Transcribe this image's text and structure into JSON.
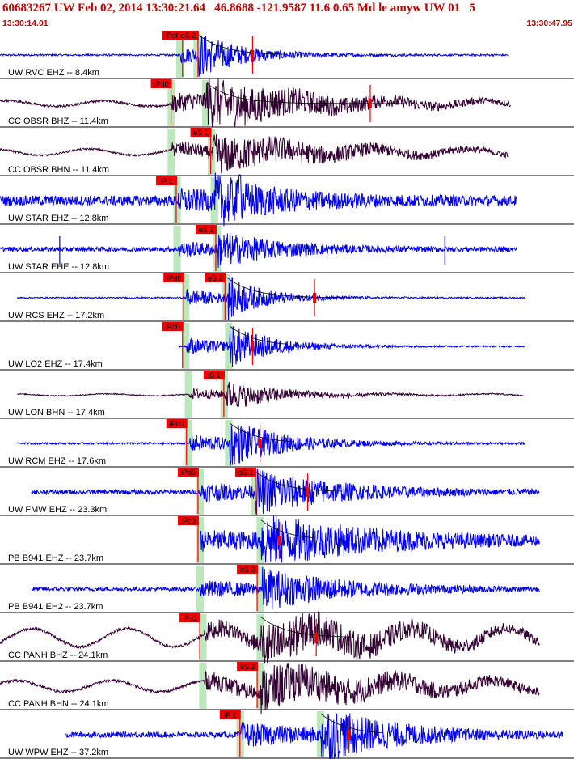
{
  "header": {
    "title": "60683267 UW Feb 02, 2014 13:30:21.64   46.8688 -121.9587 11.6 0.65 Md le amyw UW 01   5",
    "start_time": "13:30:14.01",
    "end_time": "13:30:47.95"
  },
  "colors": {
    "accent": "#c00000",
    "pick_box": "#ee0000",
    "pick_window": "#bde8bd",
    "trace_blue": "#0000ee",
    "trace_purple": "#330033",
    "coda_fit": "#990000"
  },
  "chart_data": {
    "type": "line",
    "title": "60683267 UW Feb 02, 2014 13:30:21.64   46.8688 -121.9587 11.6 0.65 Md le amyw UW 01   5",
    "time_start": "13:30:14.01",
    "time_end": "13:30:47.95",
    "grid": false,
    "traces": [
      {
        "label": "UW RVC EHZ -- 8.4km",
        "color": "blue",
        "picks": [
          {
            "label": "iPd0",
            "t": 0.318
          },
          {
            "label": "eS 2",
            "t": 0.345
          }
        ],
        "amp": 0.38,
        "noise": 0.02,
        "onset": 0.315,
        "s_onset": 0.345,
        "decay": 0.07,
        "t_end": 0.885,
        "coda_mark": 0.44
      },
      {
        "label": "CC OBSR BHZ -- 11.4km",
        "color": "purple",
        "picks": [
          {
            "label": "iPd0",
            "t": 0.298
          }
        ],
        "amp": 0.42,
        "noise": 0.025,
        "onset": 0.3,
        "s_onset": 0.36,
        "decay": 0.18,
        "t_end": 0.89,
        "coda_mark": 0.645,
        "drift": 0.06
      },
      {
        "label": "CC OBSR BHN -- 11.4km",
        "color": "purple",
        "picks": [
          {
            "label": "eS 1",
            "t": 0.367
          }
        ],
        "amp": 0.32,
        "noise": 0.02,
        "onset": 0.3,
        "s_onset": 0.37,
        "decay": 0.2,
        "t_end": 0.885,
        "drift": 0.07
      },
      {
        "label": "UW STAR EHZ -- 12.8km",
        "color": "blue",
        "picks": [
          {
            "label": "iP 1",
            "t": 0.307
          }
        ],
        "amp": 0.4,
        "noise": 0.11,
        "onset": 0.31,
        "s_onset": 0.375,
        "decay": 0.1,
        "t_end": 0.9,
        "spike": 0.418
      },
      {
        "label": "UW STAR EHE -- 12.8km",
        "color": "blue",
        "picks": [
          {
            "label": "eS 2",
            "t": 0.376
          }
        ],
        "amp": 0.3,
        "noise": 0.05,
        "onset": 0.31,
        "s_onset": 0.38,
        "decay": 0.1,
        "t_end": 0.9,
        "glitch": [
          0.104,
          0.775
        ]
      },
      {
        "label": "UW RCS EHZ -- 17.2km",
        "color": "blue",
        "picks": [
          {
            "label": "iPd0",
            "t": 0.32
          },
          {
            "label": "eS 2",
            "t": 0.392
          }
        ],
        "amp": 0.42,
        "noise": 0.015,
        "onset": 0.325,
        "s_onset": 0.395,
        "decay": 0.06,
        "t_end": 0.915,
        "coda_mark": 0.548,
        "t_start": 0.03
      },
      {
        "label": "UW LO2 EHZ -- 17.4km",
        "color": "blue",
        "picks": [
          {
            "label": "iPd0",
            "t": 0.318
          }
        ],
        "amp": 0.4,
        "noise": 0.015,
        "onset": 0.325,
        "s_onset": 0.4,
        "decay": 0.07,
        "t_end": 0.915,
        "coda_mark": 0.44,
        "t_start": 0.31
      },
      {
        "label": "UW LON BHN -- 17.4km",
        "color": "purple",
        "picks": [
          {
            "label": "iS 1",
            "t": 0.39
          }
        ],
        "amp": 0.26,
        "noise": 0.012,
        "onset": 0.33,
        "s_onset": 0.392,
        "decay": 0.09,
        "t_end": 0.915,
        "drift": 0.02,
        "t_start": 0.03
      },
      {
        "label": "UW RCM EHZ -- 17.6km",
        "color": "blue",
        "picks": [
          {
            "label": "iPd0",
            "t": 0.325
          }
        ],
        "amp": 0.4,
        "noise": 0.02,
        "onset": 0.33,
        "s_onset": 0.4,
        "decay": 0.09,
        "t_end": 0.915,
        "coda_mark": 0.453,
        "t_start": 0.03
      },
      {
        "label": "UW FMW EHZ -- 23.3km",
        "color": "blue",
        "picks": [
          {
            "label": "iPd0",
            "t": 0.345
          },
          {
            "label": "eS 1",
            "t": 0.445
          }
        ],
        "amp": 0.38,
        "noise": 0.05,
        "onset": 0.35,
        "s_onset": 0.445,
        "decay": 0.13,
        "t_end": 0.94,
        "coda_mark": 0.536,
        "t_start": 0.055
      },
      {
        "label": "PB B941 EHZ -- 23.7km",
        "color": "blue",
        "picks": [
          {
            "label": "iPc0",
            "t": 0.345
          }
        ],
        "amp": 0.42,
        "noise": 0.06,
        "onset": 0.35,
        "s_onset": 0.455,
        "decay": 0.2,
        "t_end": 0.94,
        "coda_mark": 0.487,
        "t_start": 0.35
      },
      {
        "label": "PB B941 EH2 -- 23.7km",
        "color": "blue",
        "picks": [
          {
            "label": "eS 2",
            "t": 0.448
          }
        ],
        "amp": 0.36,
        "noise": 0.04,
        "onset": 0.35,
        "s_onset": 0.455,
        "decay": 0.14,
        "t_end": 0.94,
        "t_start": 0.055
      },
      {
        "label": "CC PANH BHZ -- 24.1km",
        "color": "purple",
        "picks": [
          {
            "label": "iPc1",
            "t": 0.348
          }
        ],
        "amp": 0.4,
        "noise": 0.03,
        "onset": 0.355,
        "s_onset": 0.455,
        "decay": 0.22,
        "t_end": 0.94,
        "coda_mark": 0.551,
        "drift": 0.2
      },
      {
        "label": "CC PANH BHN -- 24.1km",
        "color": "purple",
        "picks": [
          {
            "label": "eS 2",
            "t": 0.448
          }
        ],
        "amp": 0.38,
        "noise": 0.03,
        "onset": 0.355,
        "s_onset": 0.455,
        "decay": 0.22,
        "t_end": 0.94,
        "drift": 0.12
      },
      {
        "label": "UW WPW EHZ -- 37.2km",
        "color": "blue",
        "picks": [
          {
            "label": "iP 1",
            "t": 0.418
          }
        ],
        "amp": 0.5,
        "noise": 0.06,
        "onset": 0.42,
        "s_onset": 0.56,
        "decay": 0.12,
        "t_end": 0.98,
        "coda_mark": 0.608,
        "t_start": 0.115
      }
    ]
  }
}
